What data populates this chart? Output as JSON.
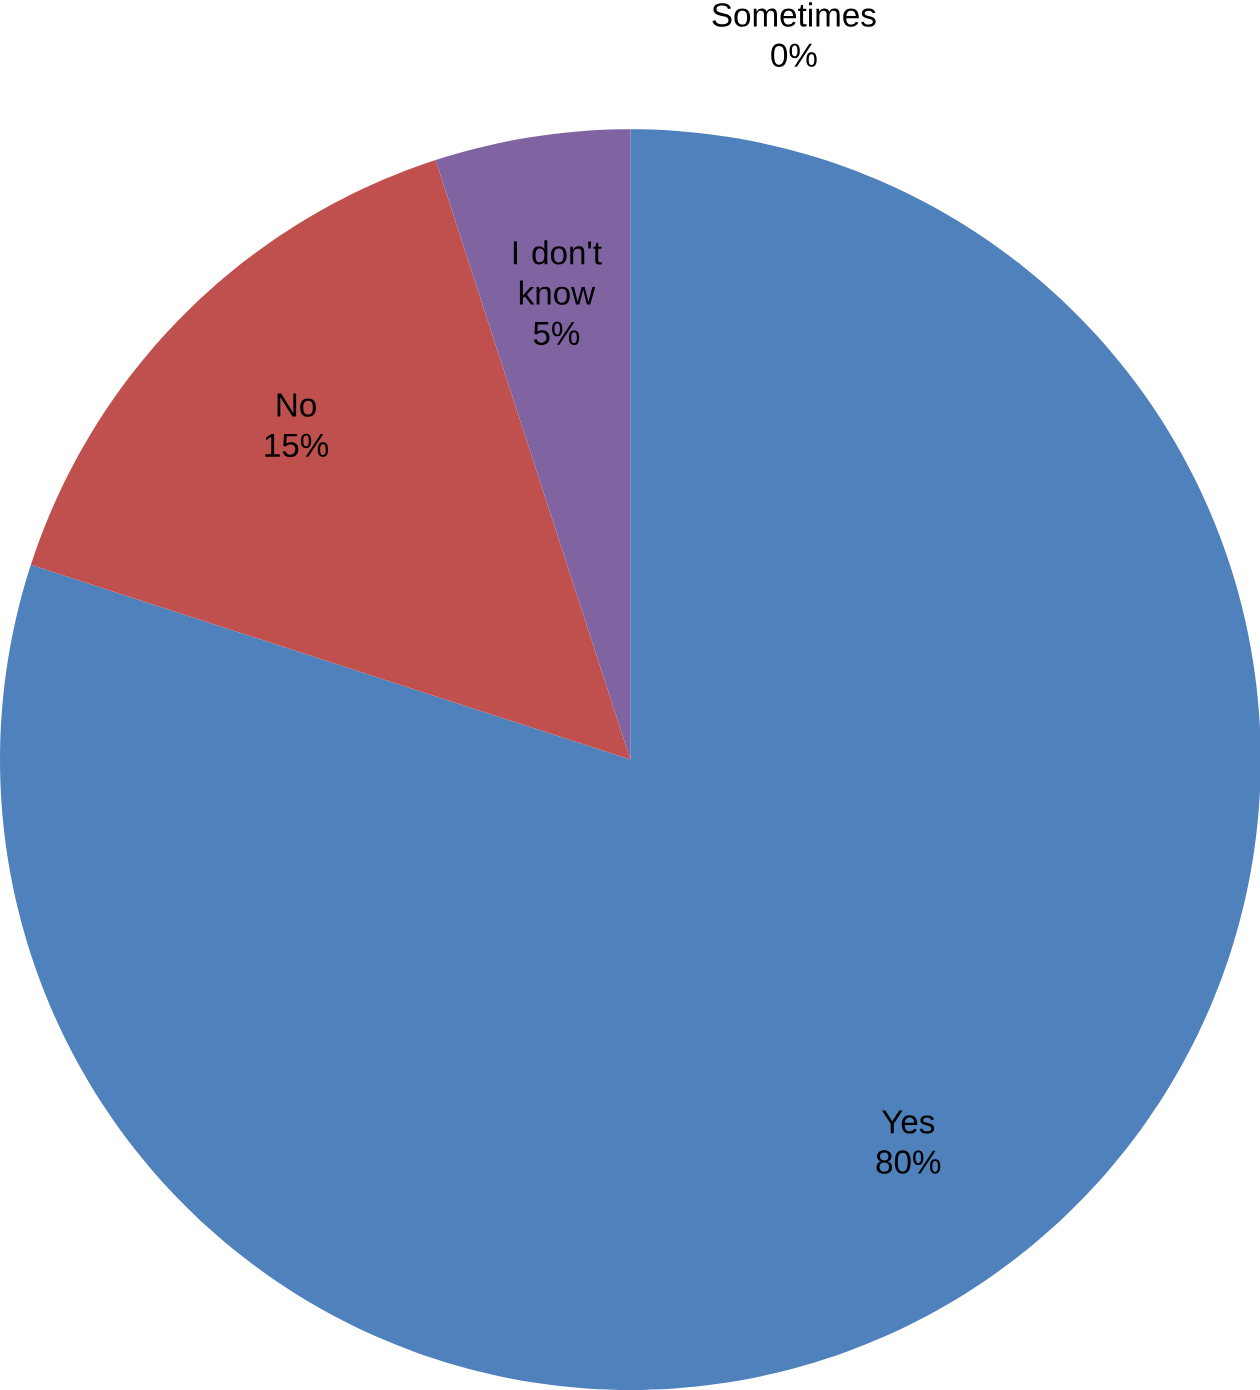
{
  "chart_data": {
    "type": "pie",
    "categories": [
      "Yes",
      "No",
      "I don't know",
      "Sometimes"
    ],
    "values": [
      80,
      15,
      5,
      0
    ],
    "value_labels": [
      "80%",
      "15%",
      "5%",
      "0%"
    ],
    "colors": [
      "#4f81bd",
      "#c0504d",
      "#8064a2",
      "#9bbb59"
    ]
  }
}
